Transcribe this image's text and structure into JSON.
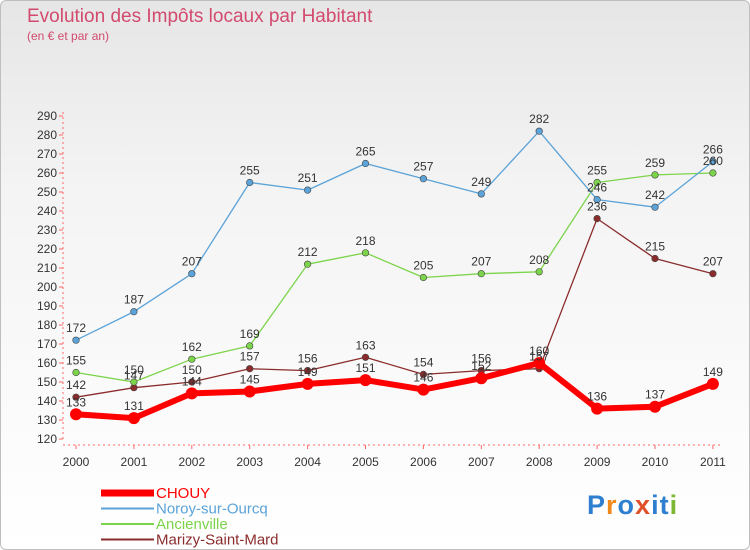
{
  "title": "Evolution des Impôts locaux par Habitant",
  "subtitle": "(en € et par an)",
  "logo": {
    "letters": [
      "P",
      "r",
      "o",
      "x",
      "i",
      "t",
      "i"
    ],
    "colors": [
      "#2f7fd1",
      "#f08a1c",
      "#2f7fd1",
      "#e0502b",
      "#2f7fd1",
      "#2f7fd1",
      "#7cb833"
    ]
  },
  "chart_data": {
    "type": "line",
    "title": "Evolution des Impôts locaux par Habitant",
    "subtitle": "(en € et par an)",
    "xlabel": "",
    "ylabel": "",
    "ylim": [
      120,
      290
    ],
    "grid": false,
    "legend": "bottom-left",
    "x": [
      "2000",
      "2001",
      "2002",
      "2003",
      "2004",
      "2005",
      "2006",
      "2007",
      "2008",
      "2009",
      "2010",
      "2011"
    ],
    "yticks": [
      120,
      130,
      140,
      150,
      160,
      170,
      180,
      190,
      200,
      210,
      220,
      230,
      240,
      250,
      260,
      270,
      280,
      290
    ],
    "series": [
      {
        "name": "CHOUY",
        "color": "#ff0000",
        "values": [
          133,
          131,
          144,
          145,
          149,
          151,
          146,
          152,
          160,
          136,
          137,
          149
        ]
      },
      {
        "name": "Noroy-sur-Ourcq",
        "color": "#5ba3d8",
        "values": [
          172,
          187,
          207,
          255,
          251,
          265,
          257,
          249,
          282,
          246,
          242,
          266
        ]
      },
      {
        "name": "Ancienville",
        "color": "#7cd44a",
        "values": [
          155,
          150,
          162,
          169,
          212,
          218,
          205,
          207,
          208,
          255,
          259,
          260
        ]
      },
      {
        "name": "Marizy-Saint-Mard",
        "color": "#8b2c2c",
        "values": [
          142,
          147,
          150,
          157,
          156,
          163,
          154,
          156,
          157,
          236,
          215,
          207
        ]
      }
    ]
  }
}
